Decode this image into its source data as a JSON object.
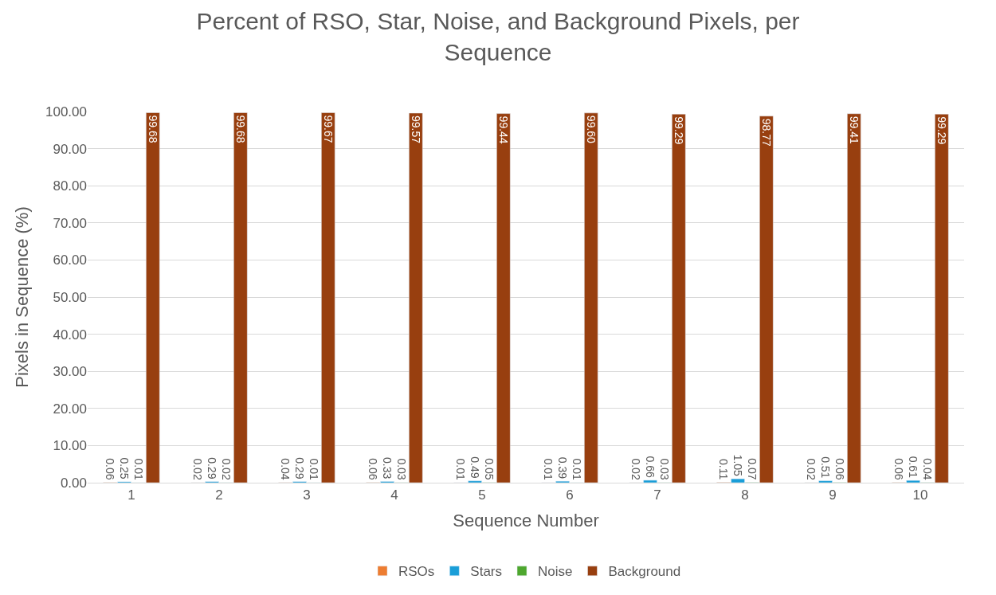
{
  "chart_data": {
    "type": "bar",
    "title": "Percent of RSO, Star, Noise, and Background Pixels, per Sequence",
    "xlabel": "Sequence Number",
    "ylabel": "Pixels in Sequence (%)",
    "categories": [
      "1",
      "2",
      "3",
      "4",
      "5",
      "6",
      "7",
      "8",
      "9",
      "10"
    ],
    "series": [
      {
        "name": "RSOs",
        "color": "#ed7d31",
        "values": [
          0.06,
          0.02,
          0.04,
          0.06,
          0.01,
          0.01,
          0.02,
          0.11,
          0.02,
          0.06
        ]
      },
      {
        "name": "Stars",
        "color": "#1a9ed8",
        "values": [
          0.25,
          0.29,
          0.29,
          0.33,
          0.49,
          0.39,
          0.66,
          1.05,
          0.51,
          0.61
        ]
      },
      {
        "name": "Noise",
        "color": "#4ea72e",
        "values": [
          0.01,
          0.02,
          0.01,
          0.03,
          0.05,
          0.01,
          0.03,
          0.07,
          0.06,
          0.04
        ]
      },
      {
        "name": "Background",
        "color": "#983f0f",
        "values": [
          99.68,
          99.68,
          99.67,
          99.57,
          99.44,
          99.6,
          99.29,
          98.77,
          99.41,
          99.29
        ],
        "value_labels": [
          "99.68",
          "99.68",
          "99.67",
          "99.57",
          "99.44",
          "99.60",
          "99.29",
          "98.77",
          "99.41",
          "99.29"
        ]
      }
    ],
    "ylim": [
      0,
      100
    ],
    "yticks": [
      {
        "value": 0,
        "label": "0.00"
      },
      {
        "value": 10,
        "label": "10.00"
      },
      {
        "value": 20,
        "label": "20.00"
      },
      {
        "value": 30,
        "label": "30.00"
      },
      {
        "value": 40,
        "label": "40.00"
      },
      {
        "value": 50,
        "label": "50.00"
      },
      {
        "value": 60,
        "label": "60.00"
      },
      {
        "value": 70,
        "label": "70.00"
      },
      {
        "value": 80,
        "label": "80.00"
      },
      {
        "value": 90,
        "label": "90.00"
      },
      {
        "value": 100,
        "label": "100.00"
      }
    ],
    "data_labels": true,
    "grid": "y",
    "legend": "bottom"
  }
}
